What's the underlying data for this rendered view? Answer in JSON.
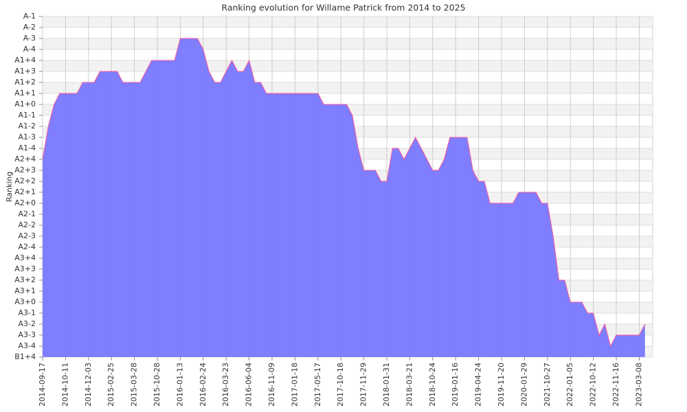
{
  "chart_data": {
    "type": "area",
    "title": "Ranking evolution for Willame Patrick from 2014 to 2025",
    "y_label": "Ranking",
    "categories": [
      "2014-09-17",
      null,
      null,
      null,
      "2014-10-11",
      null,
      null,
      null,
      "2014-12-03",
      null,
      null,
      null,
      "2015-02-25",
      null,
      null,
      null,
      "2015-03-28",
      null,
      null,
      null,
      "2015-10-28",
      null,
      null,
      null,
      "2016-01-13",
      null,
      null,
      null,
      "2016-02-24",
      null,
      null,
      null,
      "2016-03-23",
      null,
      null,
      null,
      "2016-06-04",
      null,
      null,
      null,
      "2016-11-09",
      null,
      null,
      null,
      "2017-01-18",
      null,
      null,
      null,
      "2017-05-17",
      null,
      null,
      null,
      "2017-10-18",
      null,
      null,
      null,
      "2017-11-29",
      null,
      null,
      null,
      "2018-01-31",
      null,
      null,
      null,
      "2018-03-21",
      null,
      null,
      null,
      "2018-10-24",
      null,
      null,
      null,
      "2019-01-16",
      null,
      null,
      null,
      "2019-04-24",
      null,
      null,
      null,
      "2019-11-20",
      null,
      null,
      null,
      "2020-01-29",
      null,
      null,
      null,
      "2021-10-27",
      null,
      null,
      null,
      "2022-01-05",
      null,
      null,
      null,
      "2022-10-12",
      null,
      null,
      null,
      "2022-11-16",
      null,
      null,
      null,
      "2023-03-08",
      null
    ],
    "values": [
      18,
      21,
      23,
      24,
      24,
      24,
      24,
      25,
      25,
      25,
      26,
      26,
      26,
      26,
      25,
      25,
      25,
      25,
      26,
      27,
      27,
      27,
      27,
      27,
      29,
      29,
      29,
      29,
      28,
      26,
      25,
      25,
      26,
      27,
      26,
      26,
      27,
      25,
      25,
      24,
      24,
      24,
      24,
      24,
      24,
      24,
      24,
      24,
      24,
      23,
      23,
      23,
      23,
      23,
      22,
      19,
      17,
      17,
      17,
      16,
      16,
      19,
      19,
      18,
      19,
      20,
      19,
      18,
      17,
      17,
      18,
      20,
      20,
      20,
      20,
      17,
      16,
      16,
      14,
      14,
      14,
      14,
      14,
      15,
      15,
      15,
      15,
      14,
      14,
      11,
      7,
      7,
      5,
      5,
      5,
      4,
      4,
      2,
      3,
      1,
      2,
      2,
      2,
      2,
      2,
      3
    ],
    "fill_color": "#7777ff",
    "line_color": "#ff5599",
    "ylim": [
      0,
      31
    ],
    "yticks": [
      {
        "value": 0,
        "label": "B1+4"
      },
      {
        "value": 1,
        "label": "A3-4"
      },
      {
        "value": 2,
        "label": "A3-3"
      },
      {
        "value": 3,
        "label": "A3-2"
      },
      {
        "value": 4,
        "label": "A3-1"
      },
      {
        "value": 5,
        "label": "A3+0"
      },
      {
        "value": 6,
        "label": "A3+1"
      },
      {
        "value": 7,
        "label": "A3+2"
      },
      {
        "value": 8,
        "label": "A3+3"
      },
      {
        "value": 9,
        "label": "A3+4"
      },
      {
        "value": 10,
        "label": "A2-4"
      },
      {
        "value": 11,
        "label": "A2-3"
      },
      {
        "value": 12,
        "label": "A2-2"
      },
      {
        "value": 13,
        "label": "A2-1"
      },
      {
        "value": 14,
        "label": "A2+0"
      },
      {
        "value": 15,
        "label": "A2+1"
      },
      {
        "value": 16,
        "label": "A2+2"
      },
      {
        "value": 17,
        "label": "A2+3"
      },
      {
        "value": 18,
        "label": "A2+4"
      },
      {
        "value": 19,
        "label": "A1-4"
      },
      {
        "value": 20,
        "label": "A1-3"
      },
      {
        "value": 21,
        "label": "A1-2"
      },
      {
        "value": 22,
        "label": "A1-1"
      },
      {
        "value": 23,
        "label": "A1+0"
      },
      {
        "value": 24,
        "label": "A1+1"
      },
      {
        "value": 25,
        "label": "A1+2"
      },
      {
        "value": 26,
        "label": "A1+3"
      },
      {
        "value": 27,
        "label": "A1+4"
      },
      {
        "value": 28,
        "label": "A-4"
      },
      {
        "value": 29,
        "label": "A-3"
      },
      {
        "value": 30,
        "label": "A-2"
      },
      {
        "value": 31,
        "label": "A-1"
      }
    ],
    "grid": true
  }
}
